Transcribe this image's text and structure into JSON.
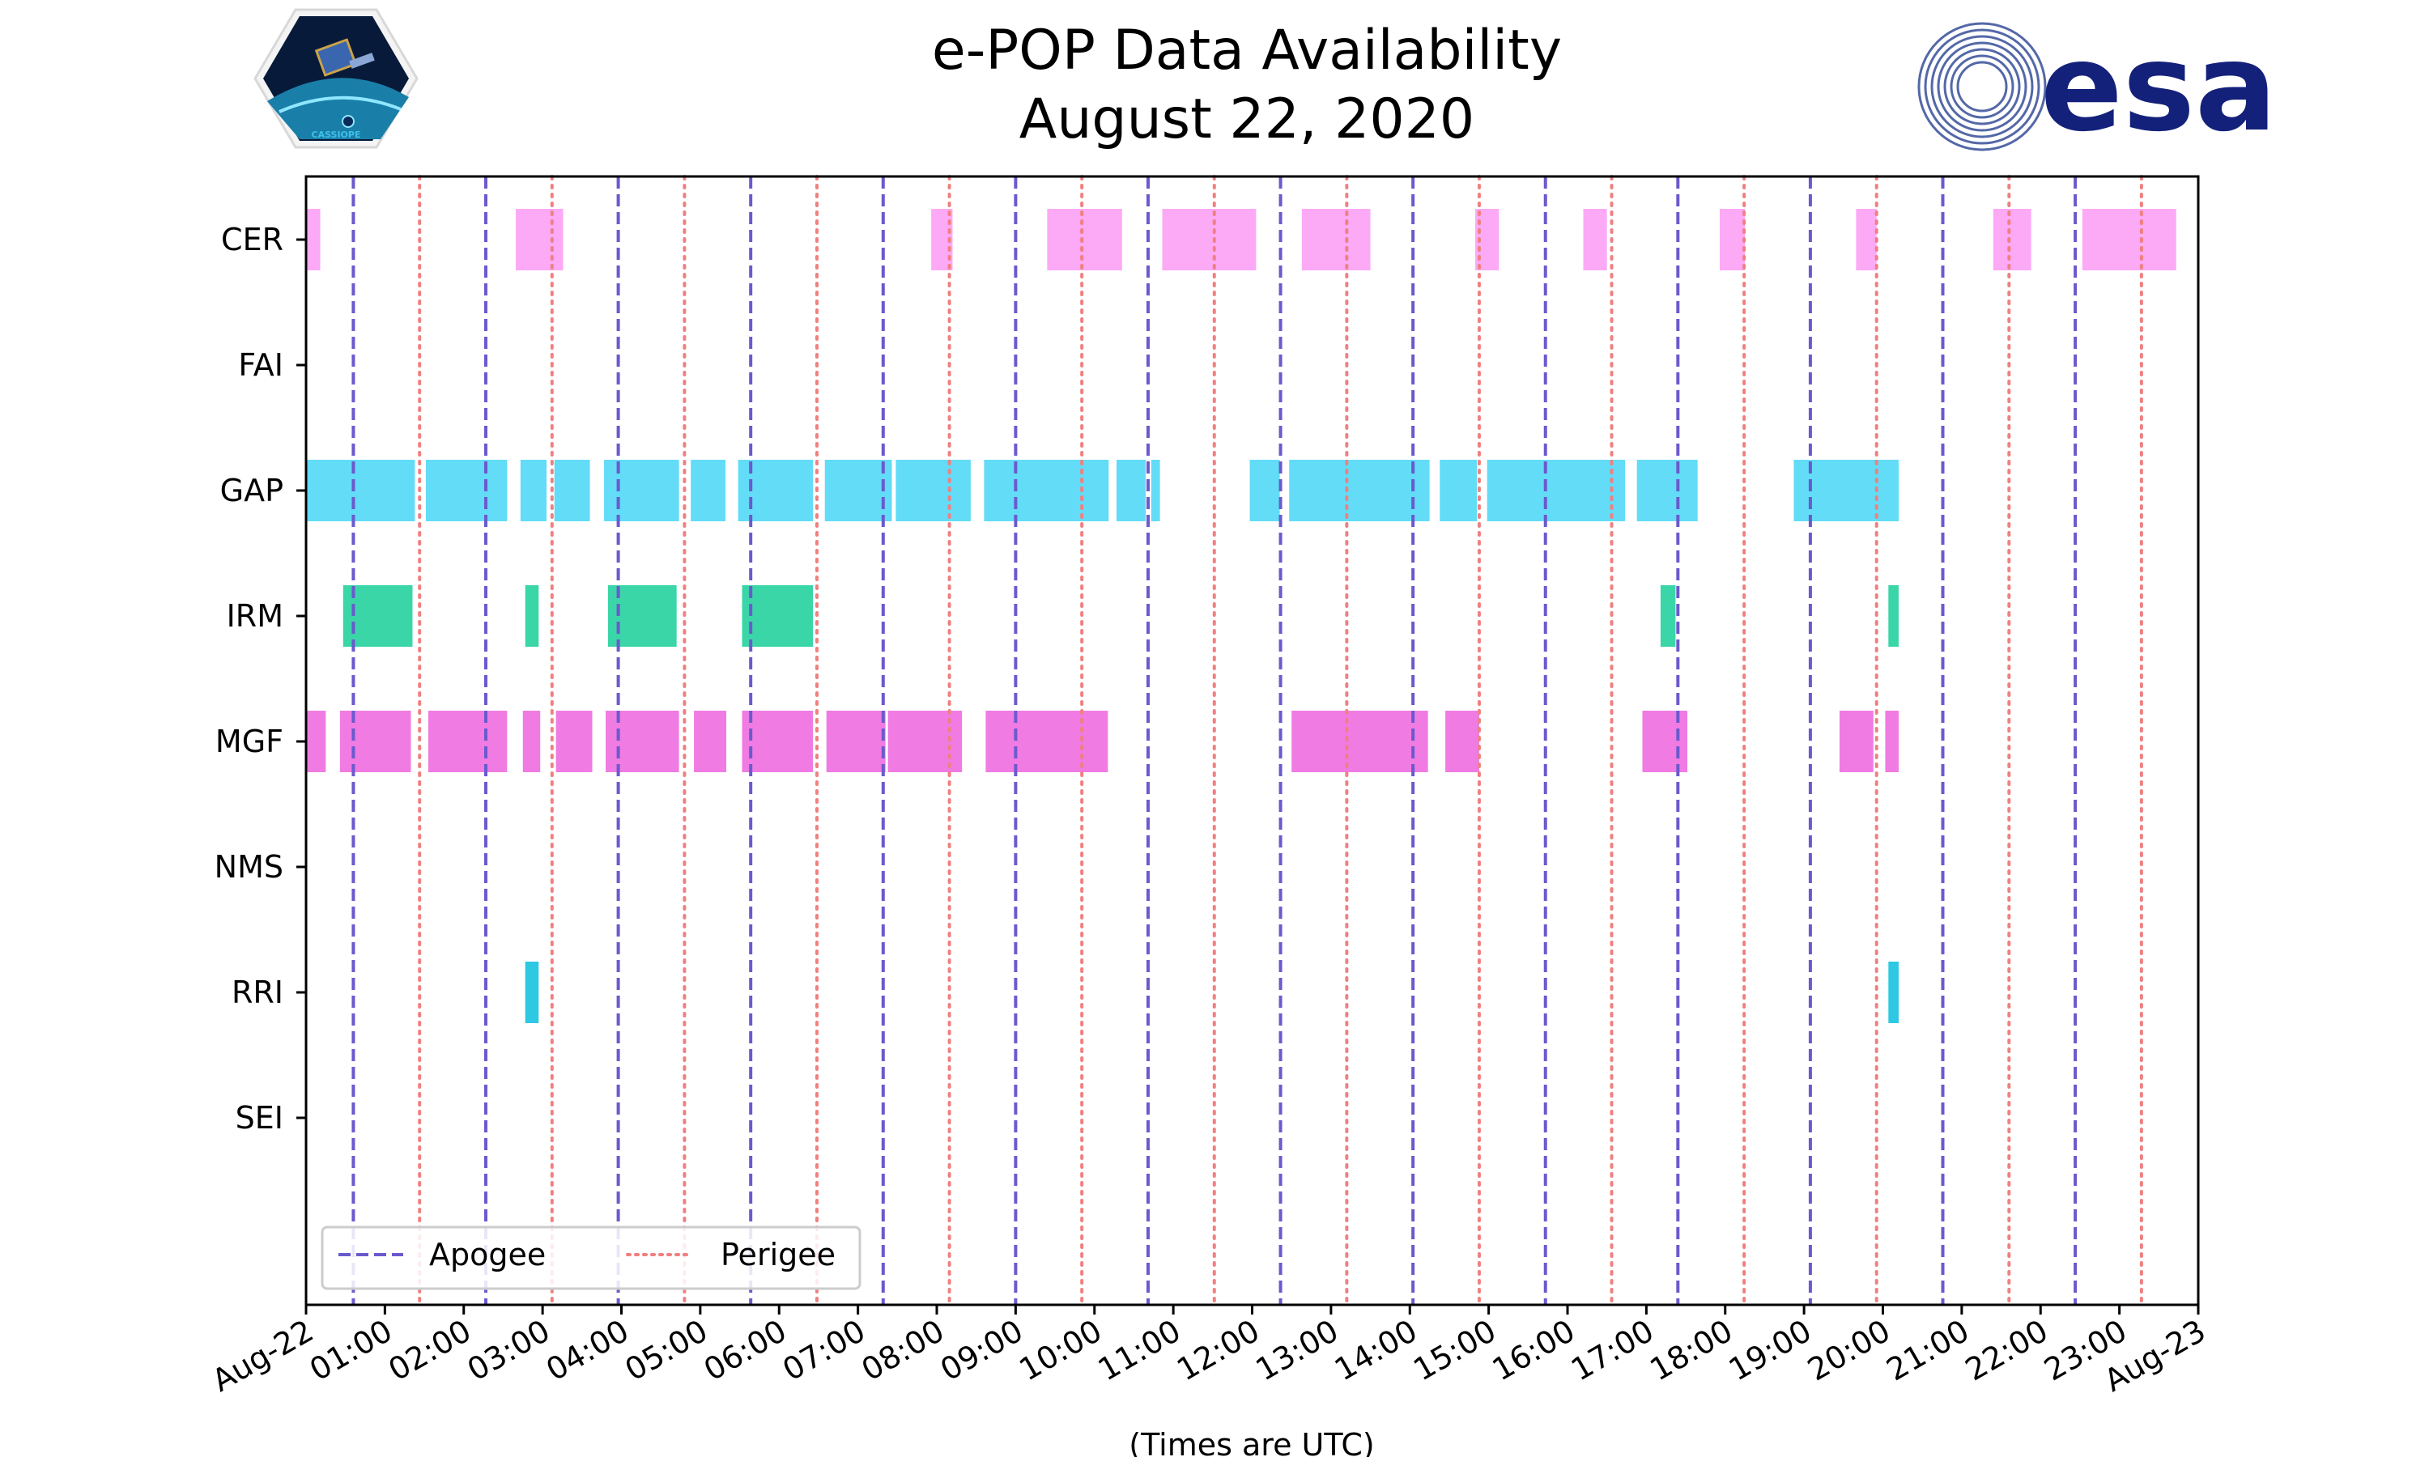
{
  "chart_data": {
    "type": "timeline",
    "title": "e-POP Data Availability",
    "subtitle": "August 22, 2020",
    "xlabel": "(Times are UTC)",
    "xlim": [
      0,
      24
    ],
    "x_tick_labels": [
      "Aug-22",
      "01:00",
      "02:00",
      "03:00",
      "04:00",
      "05:00",
      "06:00",
      "07:00",
      "08:00",
      "09:00",
      "10:00",
      "11:00",
      "12:00",
      "13:00",
      "14:00",
      "15:00",
      "16:00",
      "17:00",
      "18:00",
      "19:00",
      "20:00",
      "21:00",
      "22:00",
      "23:00",
      "Aug-23"
    ],
    "instruments": [
      "CER",
      "FAI",
      "GAP",
      "IRM",
      "MGF",
      "NMS",
      "RRI",
      "SEI"
    ],
    "colors": {
      "CER": "#fca9f6",
      "FAI": "#999999",
      "GAP": "#62dcf7",
      "IRM": "#3ad6a8",
      "MGF": "#f07be3",
      "NMS": "#999999",
      "RRI": "#2ec8e3",
      "SEI": "#999999",
      "apogee": "#6a5acd",
      "perigee": "#f08080"
    },
    "intervals": {
      "CER": [
        [
          0.0,
          0.18
        ],
        [
          2.66,
          3.26
        ],
        [
          7.93,
          8.2
        ],
        [
          9.4,
          10.35
        ],
        [
          10.86,
          12.05
        ],
        [
          12.63,
          13.5
        ],
        [
          14.83,
          15.13
        ],
        [
          16.2,
          16.5
        ],
        [
          17.93,
          18.25
        ],
        [
          19.66,
          19.92
        ],
        [
          21.4,
          21.88
        ],
        [
          22.53,
          23.72
        ]
      ],
      "FAI": [],
      "GAP": [
        [
          0.0,
          1.38
        ],
        [
          1.52,
          2.55
        ],
        [
          2.72,
          3.05
        ],
        [
          3.15,
          3.6
        ],
        [
          3.78,
          4.73
        ],
        [
          4.88,
          5.32
        ],
        [
          5.48,
          6.43
        ],
        [
          6.58,
          7.43
        ],
        [
          7.48,
          8.43
        ],
        [
          8.6,
          10.18
        ],
        [
          10.28,
          10.65
        ],
        [
          10.72,
          10.83
        ],
        [
          11.97,
          12.35
        ],
        [
          12.47,
          14.25
        ],
        [
          14.38,
          14.85
        ],
        [
          14.98,
          16.73
        ],
        [
          16.88,
          17.65
        ],
        [
          18.87,
          20.2
        ]
      ],
      "IRM": [
        [
          0.47,
          1.35
        ],
        [
          2.78,
          2.95
        ],
        [
          3.83,
          4.7
        ],
        [
          5.53,
          6.43
        ],
        [
          17.18,
          17.37
        ],
        [
          20.07,
          20.2
        ]
      ],
      "MGF": [
        [
          0.0,
          0.25
        ],
        [
          0.43,
          1.33
        ],
        [
          1.55,
          2.55
        ],
        [
          2.75,
          2.97
        ],
        [
          3.17,
          3.63
        ],
        [
          3.8,
          4.73
        ],
        [
          4.92,
          5.33
        ],
        [
          5.53,
          6.43
        ],
        [
          6.6,
          7.35
        ],
        [
          7.38,
          8.32
        ],
        [
          8.62,
          10.17
        ],
        [
          12.5,
          14.23
        ],
        [
          14.45,
          14.88
        ],
        [
          16.95,
          17.52
        ],
        [
          19.45,
          19.88
        ],
        [
          20.03,
          20.2
        ]
      ],
      "NMS": [],
      "RRI": [
        [
          2.78,
          2.95
        ],
        [
          20.07,
          20.2
        ]
      ],
      "SEI": []
    },
    "apogee_times": [
      0.6,
      2.28,
      3.96,
      5.64,
      7.32,
      9.0,
      10.68,
      12.36,
      14.04,
      15.72,
      17.4,
      19.08,
      20.76,
      22.44
    ],
    "perigee_times": [
      1.44,
      3.12,
      4.8,
      6.48,
      8.16,
      9.84,
      11.52,
      13.2,
      14.88,
      16.56,
      18.24,
      19.92,
      21.6,
      23.28
    ],
    "legend": [
      {
        "name": "Apogee",
        "style": "dashed"
      },
      {
        "name": "Perigee",
        "style": "dotted"
      }
    ],
    "legend_position": "lower-left"
  },
  "logos": {
    "left": "CASSIOPE",
    "right": "esa"
  }
}
